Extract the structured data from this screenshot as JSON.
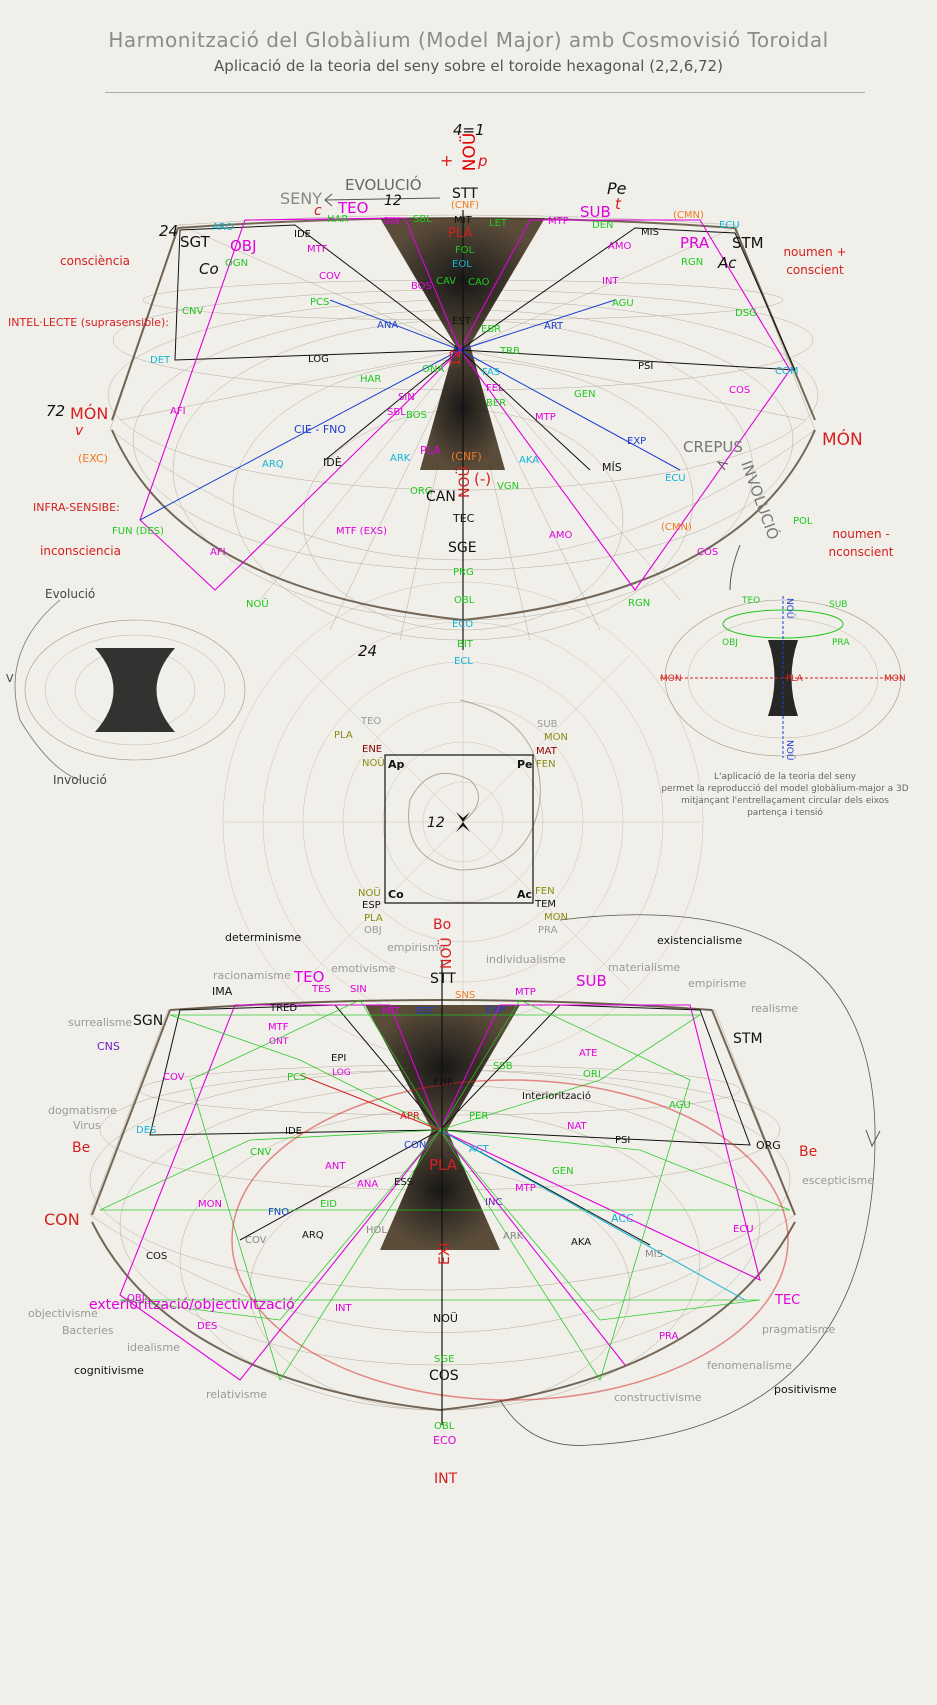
{
  "header": {
    "title": "Harmonització del Globàlium (Model Major) amb Cosmovisió Toroidal",
    "subtitle": "Aplicació de la teoria del seny sobre el toroide hexagonal (2,2,6,72)"
  },
  "colors": {
    "magenta": "#e000e0",
    "red": "#d42020",
    "green": "#1ec81e",
    "cyan": "#12b4d8",
    "blue": "#1a3fd0",
    "orange": "#f07820",
    "gray": "#8a8a8a",
    "olive": "#8a8a10",
    "purple": "#7020c0",
    "black": "#111111"
  },
  "top_torus": {
    "header_labels": [
      "4=1",
      "EVOLUCIÓ",
      "SENY",
      "12",
      "c",
      "Pe",
      "t",
      "p",
      "+"
    ],
    "side_labels": {
      "left": [
        "consciència",
        "INTEL·LECTE (suprasensible):",
        "(EXC)",
        "INFRA-SENSIBE:",
        "inconsciencia"
      ],
      "right": [
        "noumen +",
        "conscient",
        "MÓN",
        "CREPUS",
        "INVOLUCIÓ",
        "noumen -",
        "nconscient"
      ]
    },
    "corner_labels": [
      "24",
      "SGT",
      "STM",
      "Co",
      "Ac",
      "72",
      "MÓN",
      "v",
      "24"
    ],
    "labels": [
      "TEO",
      "SUB",
      "OBJ",
      "PRA",
      "ARO",
      "IDE",
      "HAR",
      "SIN",
      "SBL",
      "STT",
      "(CNF)",
      "MIT",
      "PLA",
      "FOL",
      "EOL",
      "LET",
      "MTP",
      "DEN",
      "MIS",
      "(CMN)",
      "ECU",
      "OGN",
      "MTF",
      "AMO",
      "RGN",
      "CAV",
      "CAO",
      "COV",
      "INT",
      "AGU",
      "CNV",
      "PCS",
      "ANA",
      "BOS",
      "EST",
      "EBR",
      "ART",
      "DSG",
      "DET",
      "LOG",
      "PSI",
      "COM",
      "ONA",
      "FAS",
      "TRB",
      "HAR",
      "GEN",
      "COS",
      "FEL",
      "BER",
      "MTP",
      "AFI",
      "CIE - FNO",
      "IDÈ",
      "ARQ",
      "ARK",
      "EXP",
      "MÍS",
      "ECU",
      "(CNF)",
      "(-)",
      "ORG",
      "VGN",
      "AKA",
      "FUN (DES)",
      "MTF (EXS)",
      "AMO",
      "(CMN)",
      "POL",
      "COS",
      "TEC",
      "SGE",
      "PRG",
      "OBL",
      "ECO",
      "BIT",
      "ECL",
      "RGN",
      "AFI",
      "NOÜ",
      "NOÜ",
      "12",
      "CAN",
      "SIN",
      "SBL",
      "BOS",
      "PLA"
    ]
  },
  "side_tori": {
    "left": {
      "top": "Evolució",
      "bottom": "Involució",
      "side": "V"
    },
    "right": {
      "labels": [
        "TEO",
        "SUB",
        "OBJ",
        "PRA",
        "MON",
        "MON",
        "PLA",
        "NOÜ",
        "NOÜ"
      ],
      "caption": [
        "L'aplicació de la teoria del seny",
        "permet la reproducció del model globàlium-major a 3D",
        "mitjançant l'entrellaçament circular dels eixos",
        "partença i tensió"
      ]
    }
  },
  "middle_square": {
    "corners": [
      "Ap",
      "Pe",
      "Co",
      "Ac"
    ],
    "top_left": [
      "TEO",
      "PLA",
      "ENE",
      "NOÜ"
    ],
    "top_right": [
      "SUB",
      "MON",
      "MAT",
      "FEN"
    ],
    "bottom_left": [
      "NOÜ",
      "ESP",
      "PLA",
      "OBJ"
    ],
    "bottom_right": [
      "FEN",
      "TEM",
      "MON",
      "PRA"
    ],
    "extra": [
      "12"
    ]
  },
  "bottom_torus": {
    "philosophies": [
      "determinisme",
      "existencialisme",
      "racionamisme",
      "emotivisme",
      "empirisme",
      "individualisme",
      "materialisme",
      "empirisme",
      "realisme",
      "surrealisme",
      "dogmatisme",
      "Virus",
      "escepticisme",
      "objectivisme",
      "Bacteries",
      "idealisme",
      "cognitivisme",
      "relativisme",
      "constructivisme",
      "fenomenalisme",
      "pragmatisme",
      "positivisme"
    ],
    "labels": [
      "Bo",
      "NOÜ",
      "STT",
      "TEO",
      "SUB",
      "IMA",
      "TES",
      "SIN",
      "TRED",
      "MIT",
      "EST",
      "SNS",
      "MTP",
      "EXP",
      "SGN",
      "STM",
      "CNS",
      "MTF",
      "ONT",
      "EPI",
      "LOG",
      "PCS",
      "EHR",
      "SSB",
      "ATE",
      "ORI",
      "AGU",
      "COV",
      "APR",
      "PER",
      "NAT",
      "Interiorització",
      "DES",
      "IDE",
      "CON",
      "ACT",
      "PSI",
      "ORG",
      "Be",
      "Be",
      "CNV",
      "ANT",
      "GEN",
      "ANA",
      "ESS",
      "PLA",
      "INC",
      "MTP",
      "ACC",
      "FNO",
      "EID",
      "CON",
      "MON",
      "COV",
      "ARQ",
      "HOL",
      "ARK",
      "AKA",
      "MIS",
      "ECU",
      "COS",
      "exteriorització/objectivització",
      "OBJ",
      "DES",
      "INT",
      "EXI",
      "NOÜ",
      "TEC",
      "PRA",
      "COS",
      "SGE",
      "OBL",
      "ECO",
      "INT",
      "Bo",
      "Co",
      "Ac"
    ]
  }
}
